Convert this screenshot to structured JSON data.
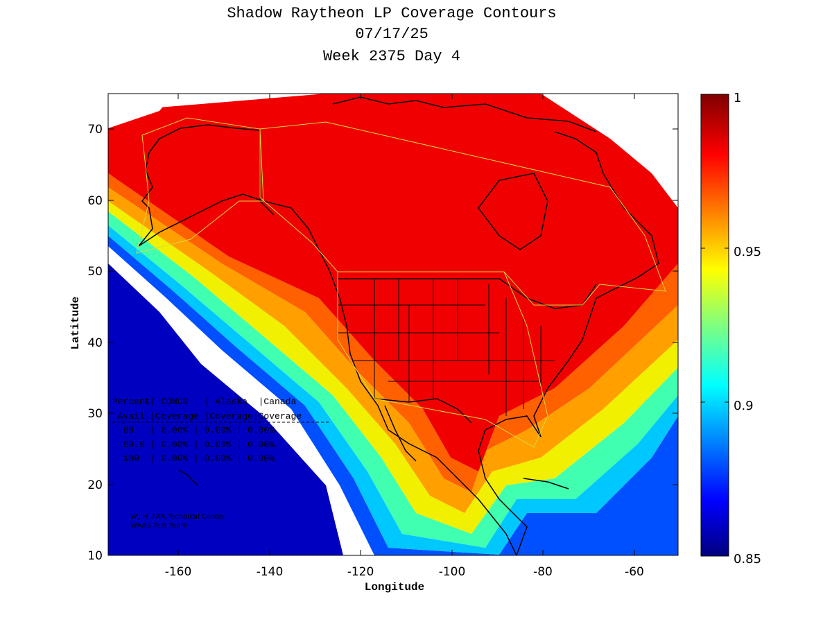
{
  "title": {
    "line1": "Shadow Raytheon LP Coverage Contours",
    "line2": "07/17/25",
    "line3": "Week 2375 Day 4"
  },
  "axes": {
    "xlabel": "Longitude",
    "ylabel": "Latitude",
    "xticks": [
      "-160",
      "-140",
      "-120",
      "-100",
      "-80",
      "-60"
    ],
    "yticks": [
      "70",
      "60",
      "50",
      "40",
      "30",
      "20",
      "10"
    ],
    "xlim": [
      -175,
      -50
    ],
    "ylim": [
      10,
      75
    ]
  },
  "colorbar": {
    "ticks": [
      "1",
      "0.95",
      "0.9",
      "0.85"
    ],
    "range": [
      0.85,
      1
    ]
  },
  "table": {
    "header1": "Percent| CONUS   | Alaska  |Canada",
    "header2": " Avail.|Coverage |Coverage|Coverage",
    "rows": [
      "  99   | 0.00% | 0.00% | 0.00%",
      "  99.9 | 0.00% | 0.00% | 0.00%",
      "  100  | 0.00% | 0.00% | 0.00%"
    ]
  },
  "credits": {
    "line1": "W.J.H. FAA Technical Center",
    "line2": "WAAS Test Team"
  },
  "colors": {
    "high": "#f20000",
    "mid": "#ffff00",
    "low": "#00007f"
  }
}
